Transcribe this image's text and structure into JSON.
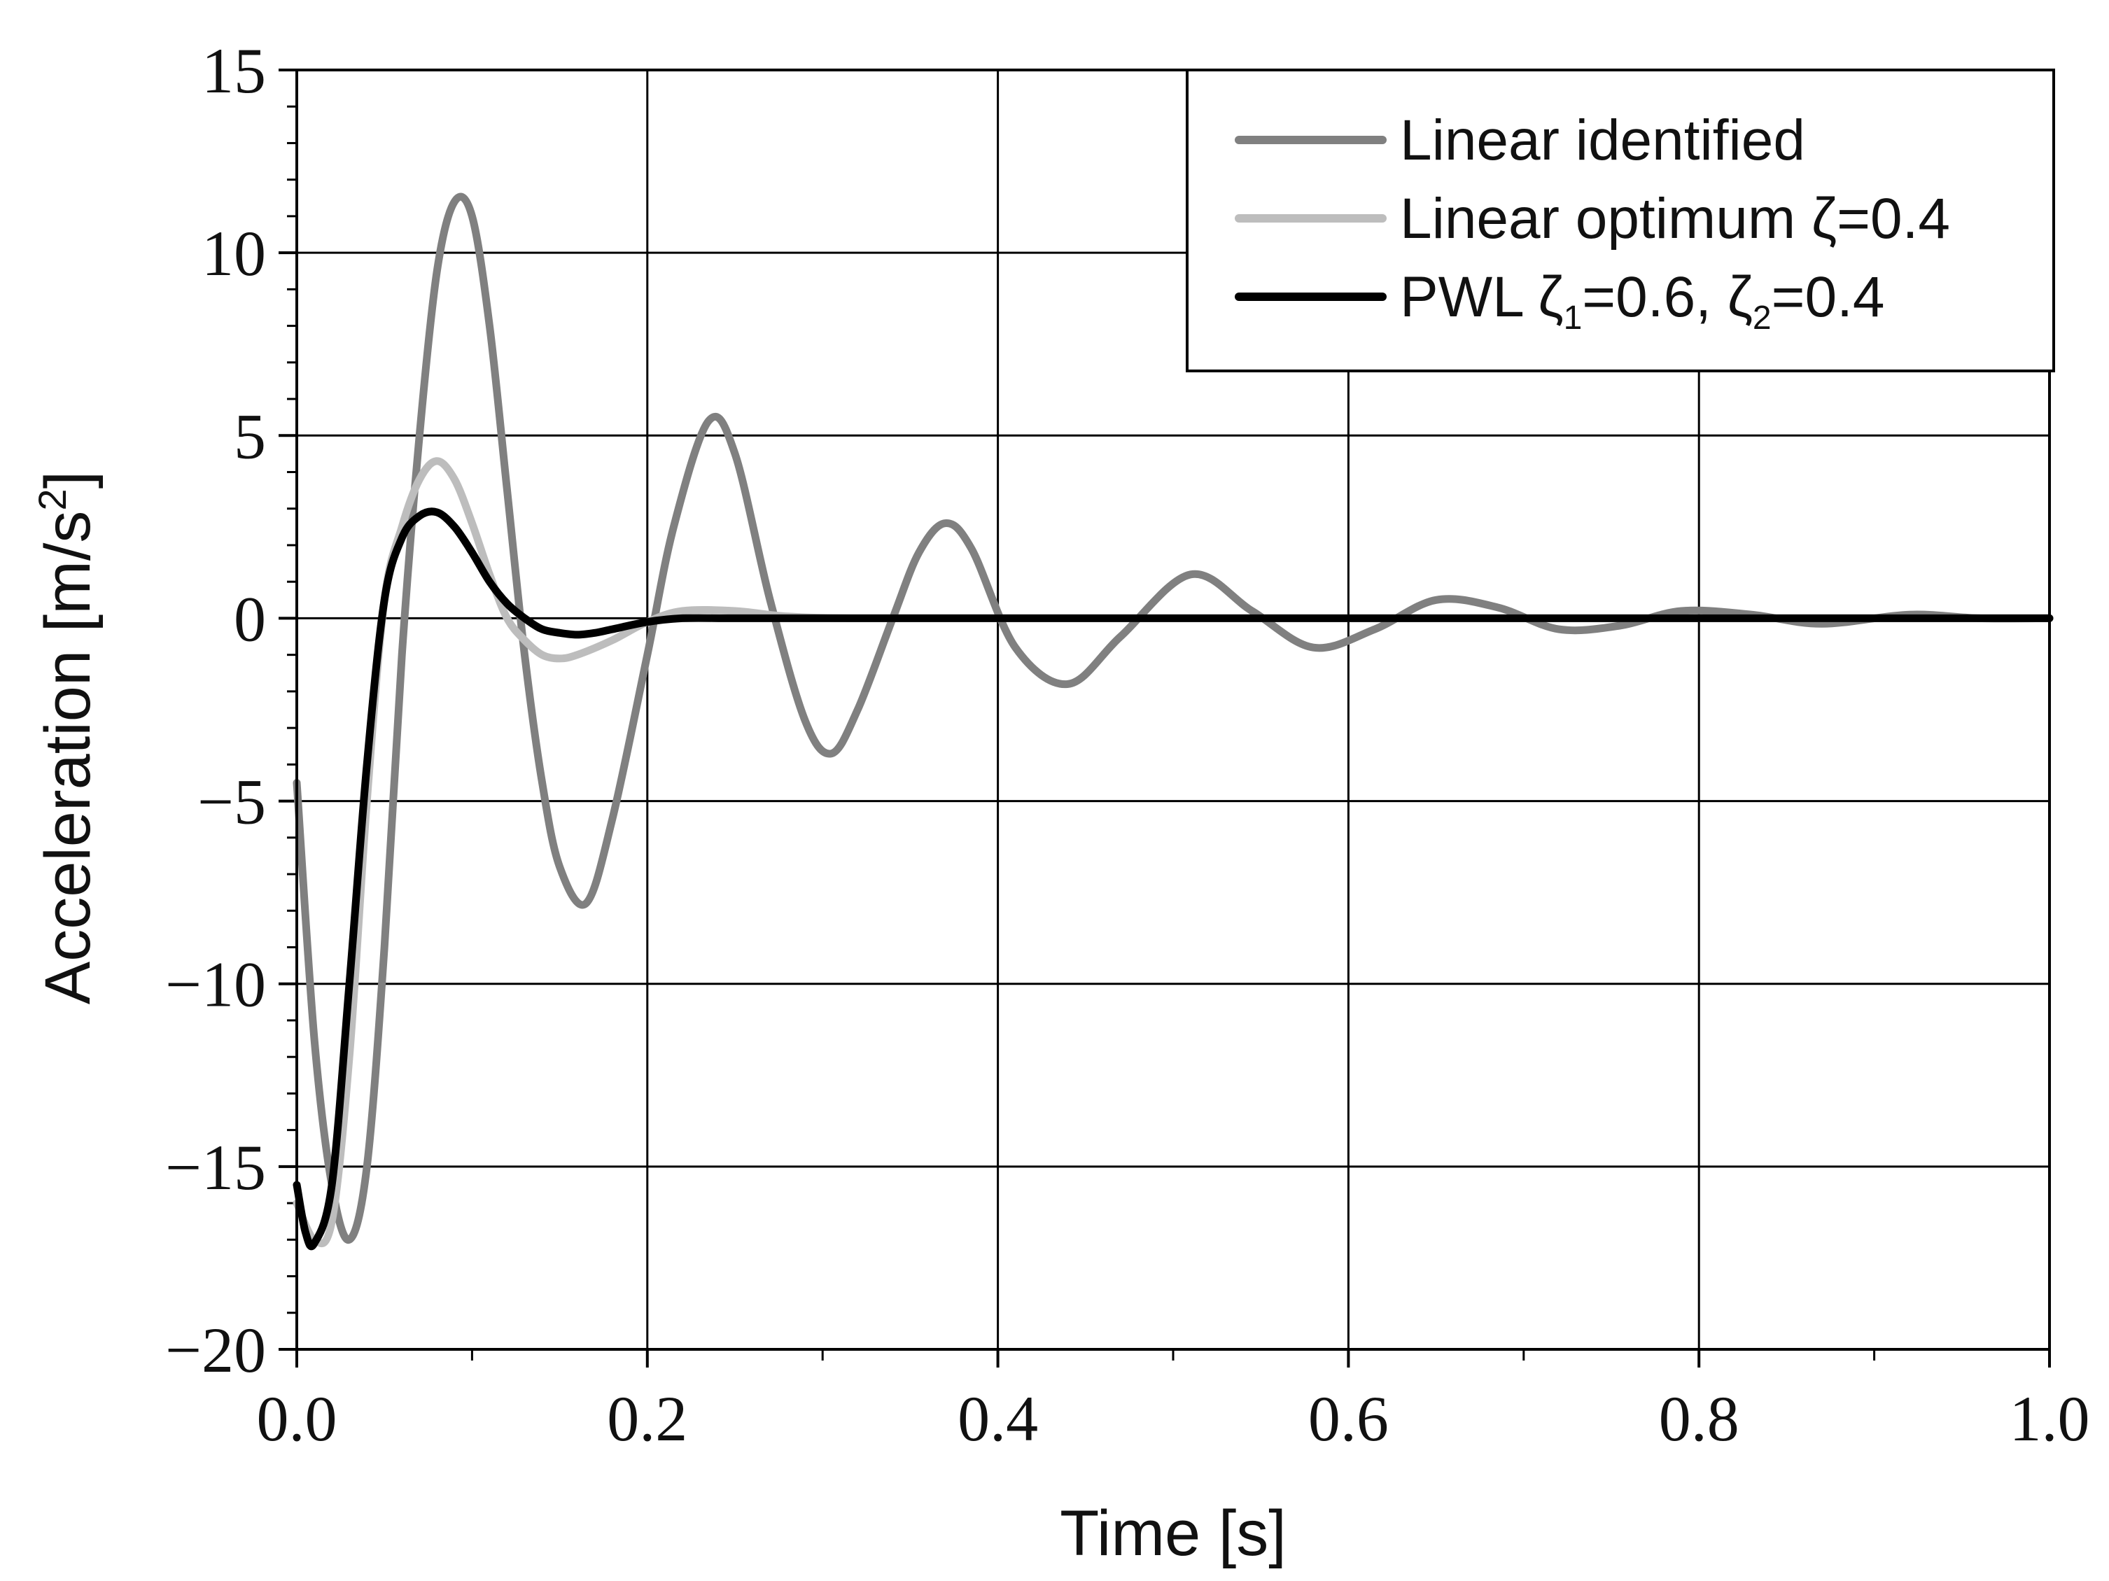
{
  "chart_data": {
    "type": "line",
    "title": "",
    "xlabel": "Time [s]",
    "ylabel": "Acceleration [m/s",
    "ylabel_exponent": "2",
    "ylabel_close": "]",
    "xlim": [
      0.0,
      1.0
    ],
    "ylim": [
      -20,
      15
    ],
    "xticks": [
      0.0,
      0.2,
      0.4,
      0.6,
      0.8,
      1.0
    ],
    "xtick_labels": [
      "0.0",
      "0.2",
      "0.4",
      "0.6",
      "0.8",
      "1.0"
    ],
    "yticks": [
      15,
      10,
      5,
      0,
      -5,
      -10,
      -15,
      -20
    ],
    "ytick_labels": [
      "15",
      "10",
      "5",
      "0",
      "−5",
      "−10",
      "−15",
      "−20"
    ],
    "grid": true,
    "legend_position": "top-right",
    "series": [
      {
        "name": "Linear identified",
        "color": "#808080",
        "x": [
          0.0,
          0.01,
          0.02,
          0.03,
          0.04,
          0.05,
          0.06,
          0.07,
          0.08,
          0.09,
          0.1,
          0.11,
          0.12,
          0.13,
          0.14,
          0.15,
          0.165,
          0.18,
          0.2,
          0.215,
          0.235,
          0.25,
          0.27,
          0.29,
          0.305,
          0.32,
          0.34,
          0.355,
          0.37,
          0.385,
          0.41,
          0.44,
          0.47,
          0.51,
          0.545,
          0.58,
          0.615,
          0.65,
          0.685,
          0.72,
          0.755,
          0.79,
          0.83,
          0.87,
          0.92,
          0.96,
          1.0
        ],
        "y": [
          -4.5,
          -11.5,
          -15.5,
          -17.0,
          -15.0,
          -9.0,
          -1.0,
          5.0,
          9.5,
          11.4,
          11.0,
          8.0,
          3.5,
          -1.0,
          -4.5,
          -6.8,
          -7.8,
          -5.5,
          -1.0,
          2.5,
          5.4,
          4.5,
          0.5,
          -2.8,
          -3.7,
          -2.5,
          0.0,
          1.8,
          2.6,
          1.9,
          -0.8,
          -1.8,
          -0.5,
          1.2,
          0.2,
          -0.8,
          -0.3,
          0.5,
          0.3,
          -0.3,
          -0.2,
          0.2,
          0.1,
          -0.15,
          0.1,
          0.0,
          0.0
        ]
      },
      {
        "name": "Linear optimum ζ=0.4",
        "legend_main": "Linear optimum ζ=0.4",
        "color": "#bdbdbd",
        "x": [
          0.0,
          0.01,
          0.02,
          0.03,
          0.04,
          0.05,
          0.06,
          0.07,
          0.08,
          0.09,
          0.1,
          0.11,
          0.12,
          0.13,
          0.14,
          0.15,
          0.16,
          0.18,
          0.2,
          0.22,
          0.25,
          0.28,
          0.32,
          0.4,
          0.5,
          0.6,
          0.8,
          1.0
        ],
        "y": [
          -16.0,
          -17.0,
          -16.5,
          -12.0,
          -5.0,
          0.5,
          2.5,
          3.8,
          4.3,
          3.8,
          2.6,
          1.2,
          0.0,
          -0.6,
          -1.0,
          -1.1,
          -1.0,
          -0.6,
          -0.1,
          0.2,
          0.2,
          0.05,
          0.0,
          0.0,
          0.0,
          0.0,
          0.0,
          0.0
        ]
      },
      {
        "name": "PWL ζ1=0.6, ζ2=0.4",
        "legend_parts": [
          "PWL ζ",
          "1",
          "=0.6, ζ",
          "2",
          "=0.4"
        ],
        "color": "#000000",
        "x": [
          0.0,
          0.005,
          0.01,
          0.02,
          0.03,
          0.04,
          0.05,
          0.06,
          0.07,
          0.08,
          0.09,
          0.1,
          0.11,
          0.12,
          0.13,
          0.14,
          0.15,
          0.16,
          0.17,
          0.18,
          0.2,
          0.22,
          0.25,
          0.3,
          0.4,
          0.6,
          0.8,
          1.0
        ],
        "y": [
          -15.5,
          -16.8,
          -17.1,
          -15.5,
          -10.0,
          -4.0,
          0.5,
          2.2,
          2.8,
          2.9,
          2.5,
          1.8,
          1.0,
          0.4,
          0.0,
          -0.3,
          -0.4,
          -0.45,
          -0.4,
          -0.3,
          -0.1,
          0.0,
          0.0,
          0.0,
          0.0,
          0.0,
          0.0,
          0.0
        ]
      }
    ]
  }
}
